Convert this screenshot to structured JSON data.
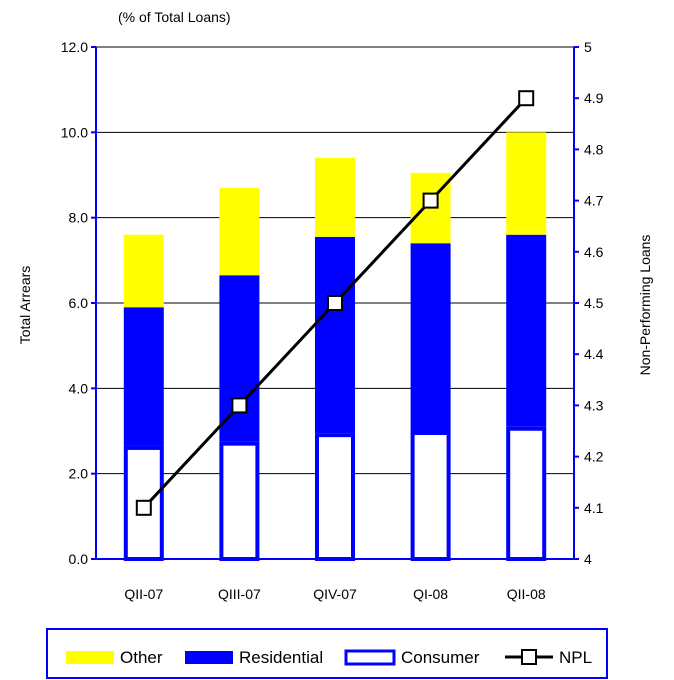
{
  "chart_data": {
    "type": "bar",
    "subtitle": "(% of Total Loans)",
    "categories": [
      "QII-07",
      "QIII-07",
      "QIV-07",
      "QI-08",
      "QII-08"
    ],
    "stacked": true,
    "series": [
      {
        "name": "Consumer",
        "axis": "left",
        "values": [
          2.65,
          2.75,
          2.95,
          3.0,
          3.1
        ],
        "color": "#ffffff",
        "border": "#0000ff"
      },
      {
        "name": "Residential",
        "axis": "left",
        "values": [
          3.25,
          3.9,
          4.6,
          4.4,
          4.5
        ],
        "color": "#0000ff"
      },
      {
        "name": "Other",
        "axis": "left",
        "values": [
          1.7,
          2.05,
          1.85,
          1.65,
          2.4
        ],
        "color": "#ffff00"
      },
      {
        "name": "NPL",
        "type": "line",
        "axis": "right",
        "values": [
          4.1,
          4.3,
          4.5,
          4.7,
          4.9
        ],
        "color": "#000000",
        "marker": "square"
      }
    ],
    "ylabel": "Total Arrears",
    "y2label": "Non-Performing Loans",
    "ylim": [
      0,
      12
    ],
    "y2lim": [
      4,
      5
    ],
    "yticks": [
      "0.0",
      "2.0",
      "4.0",
      "6.0",
      "8.0",
      "10.0",
      "12.0"
    ],
    "y2ticks": [
      "4",
      "4.1",
      "4.2",
      "4.3",
      "4.4",
      "4.5",
      "4.6",
      "4.7",
      "4.8",
      "4.9",
      "5"
    ],
    "grid": true,
    "legend": {
      "position": "bottom",
      "entries": [
        "Other",
        "Residential",
        "Consumer",
        "NPL"
      ]
    }
  }
}
